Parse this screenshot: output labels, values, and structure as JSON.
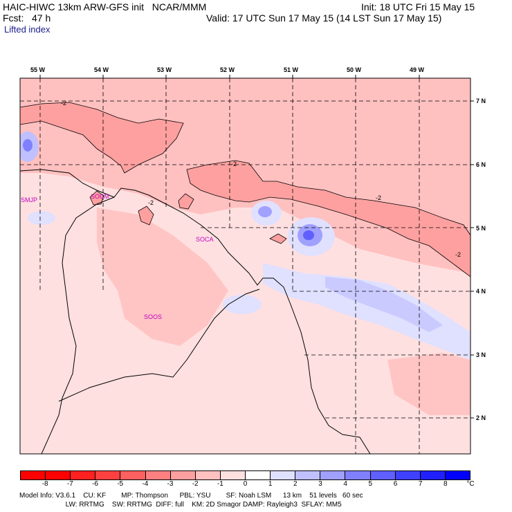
{
  "header": {
    "title_left": "HAIC-HIWC 13km ARW-GFS init   NCAR/MMM",
    "init": "Init: 18 UTC Fri 15 May 15",
    "fcst": "Fcst:   47 h",
    "valid": "Valid: 17 UTC Sun 17 May 15 (14 LST Sun 17 May 15)",
    "field": "Lifted index"
  },
  "map": {
    "lon_labels": [
      "55 W",
      "54 W",
      "53 W",
      "52 W",
      "51 W",
      "50 W",
      "49 W"
    ],
    "lat_labels": [
      "7 N",
      "6 N",
      "5 N",
      "4 N",
      "3 N",
      "2 N"
    ],
    "places": [
      "SMJP",
      "SOCM",
      "SOCA",
      "SOOS"
    ],
    "contour_labels": [
      "-2",
      "-2",
      "-2",
      "-2",
      "-2"
    ]
  },
  "colorbar": {
    "labels": [
      "-8",
      "-7",
      "-6",
      "-5",
      "-4",
      "-3",
      "-2",
      "-1",
      "0",
      "1",
      "2",
      "3",
      "4",
      "5",
      "6",
      "7",
      "8"
    ],
    "unit": "°C",
    "colors": [
      "#ff0000",
      "#ff2020",
      "#ff4040",
      "#ff6060",
      "#ff8080",
      "#ffa0a0",
      "#ffc0c0",
      "#ffe0e0",
      "#ffffff",
      "#e0e0ff",
      "#c0c0ff",
      "#a0a0ff",
      "#8080ff",
      "#6060ff",
      "#4040ff",
      "#2020ff",
      "#0000ff"
    ]
  },
  "footer": {
    "line1": "Model Info: V3.6.1    CU: KF        MP: Thompson      PBL: YSU        SF: Noah LSM      13 km    51 levels   60 sec",
    "line2": "                        LW: RRTMG    SW: RRTMG  DIFF: full    KM: 2D Smagor DAMP: Rayleigh3  SFLAY: MM5"
  }
}
